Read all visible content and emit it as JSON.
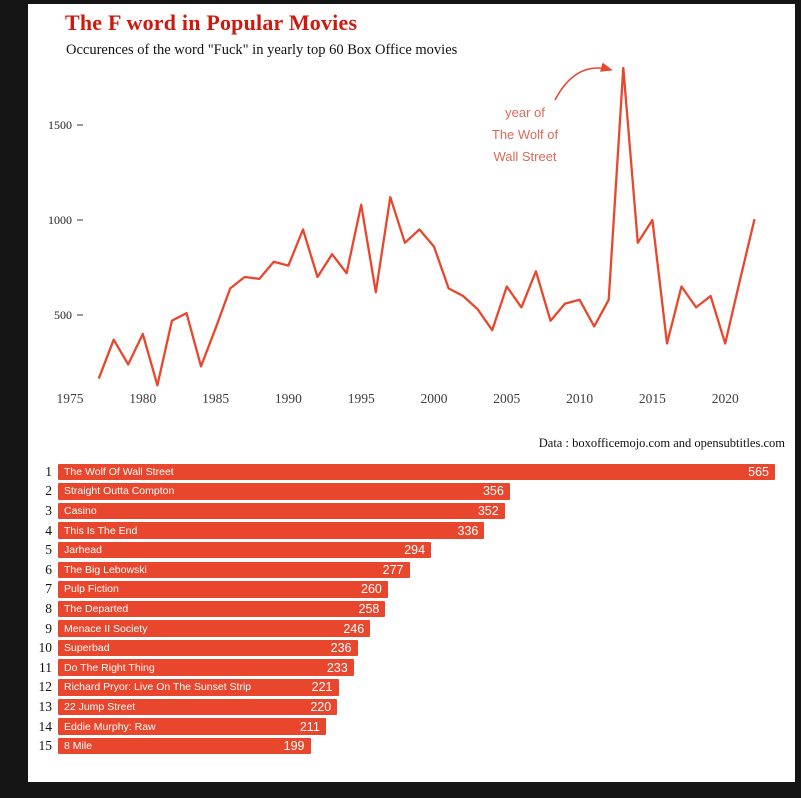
{
  "window": {
    "title": "The F word in Popular Movies",
    "subtitle": "Occurences of the word \"Fuck\" in yearly top 60 Box Office movies",
    "source": "Data : boxofficemojo.com and opensubtitles.com"
  },
  "colors": {
    "accent": "#E8472D",
    "title_red": "#CE1A0E",
    "annotation_red": "#DB6A57",
    "axis_text": "#3d3d3d",
    "frame_bg": "#151515"
  },
  "chart_data": [
    {
      "type": "line",
      "title": "Occurences of the word \"Fuck\" in yearly top 60 Box Office movies",
      "xlabel": "",
      "ylabel": "",
      "x": [
        1977,
        1978,
        1979,
        1980,
        1981,
        1982,
        1983,
        1984,
        1985,
        1986,
        1987,
        1988,
        1989,
        1990,
        1991,
        1992,
        1993,
        1994,
        1995,
        1996,
        1997,
        1998,
        1999,
        2000,
        2001,
        2002,
        2003,
        2004,
        2005,
        2006,
        2007,
        2008,
        2009,
        2010,
        2011,
        2012,
        2013,
        2014,
        2015,
        2016,
        2017,
        2018,
        2019,
        2020,
        2021,
        2022
      ],
      "y": [
        170,
        370,
        240,
        400,
        130,
        470,
        510,
        230,
        430,
        640,
        700,
        690,
        780,
        760,
        950,
        700,
        820,
        720,
        1080,
        620,
        1120,
        880,
        950,
        860,
        640,
        600,
        530,
        420,
        650,
        540,
        730,
        470,
        560,
        580,
        440,
        580,
        1800,
        880,
        1000,
        350,
        650,
        540,
        600,
        350,
        680,
        1000
      ],
      "xticks": [
        1975,
        1980,
        1985,
        1990,
        1995,
        2000,
        2005,
        2010,
        2015,
        2020
      ],
      "yticks": [
        500,
        1000,
        1500
      ],
      "xlim": [
        1975,
        2023
      ],
      "ylim": [
        0,
        1900
      ],
      "grid": false,
      "legend": "none",
      "annotation": {
        "text_lines": [
          "year of",
          "The Wolf of",
          "Wall Street"
        ],
        "points_to": {
          "year": 2013,
          "value": 1800
        }
      }
    },
    {
      "type": "bar",
      "orientation": "horizontal",
      "title": "Top 15 movies by count",
      "ranks": [
        1,
        2,
        3,
        4,
        5,
        6,
        7,
        8,
        9,
        10,
        11,
        12,
        13,
        14,
        15
      ],
      "categories": [
        "The Wolf Of Wall Street",
        "Straight Outta Compton",
        "Casino",
        "This Is The End",
        "Jarhead",
        "The Big Lebowski",
        "Pulp Fiction",
        "The Departed",
        "Menace II Society",
        "Superbad",
        "Do The Right Thing",
        "Richard Pryor: Live On The Sunset Strip",
        "22 Jump Street",
        "Eddie Murphy: Raw",
        "8 Mile"
      ],
      "values": [
        565,
        356,
        352,
        336,
        294,
        277,
        260,
        258,
        246,
        236,
        233,
        221,
        220,
        211,
        199
      ],
      "xlim": [
        0,
        565
      ]
    }
  ]
}
